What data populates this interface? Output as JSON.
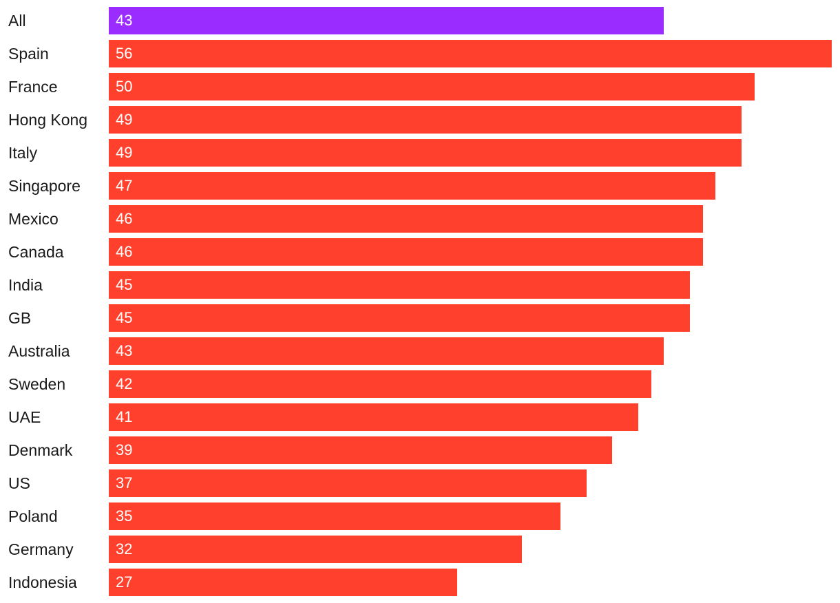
{
  "chart_data": {
    "type": "bar",
    "orientation": "horizontal",
    "categories": [
      "All",
      "Spain",
      "France",
      "Hong Kong",
      "Italy",
      "Singapore",
      "Mexico",
      "Canada",
      "India",
      "GB",
      "Australia",
      "Sweden",
      "UAE",
      "Denmark",
      "US",
      "Poland",
      "Germany",
      "Indonesia"
    ],
    "values": [
      43,
      56,
      50,
      49,
      49,
      47,
      46,
      46,
      45,
      45,
      43,
      42,
      41,
      39,
      37,
      35,
      32,
      27
    ],
    "highlight_category": "All",
    "colors": {
      "highlight": "#9b2cff",
      "default": "#ff402d",
      "value_text": "#ffffff",
      "label_text": "#1a1a1a"
    },
    "xlim": [
      0,
      56
    ],
    "grid": false,
    "legend": "none",
    "title": "",
    "xlabel": "",
    "ylabel": ""
  }
}
